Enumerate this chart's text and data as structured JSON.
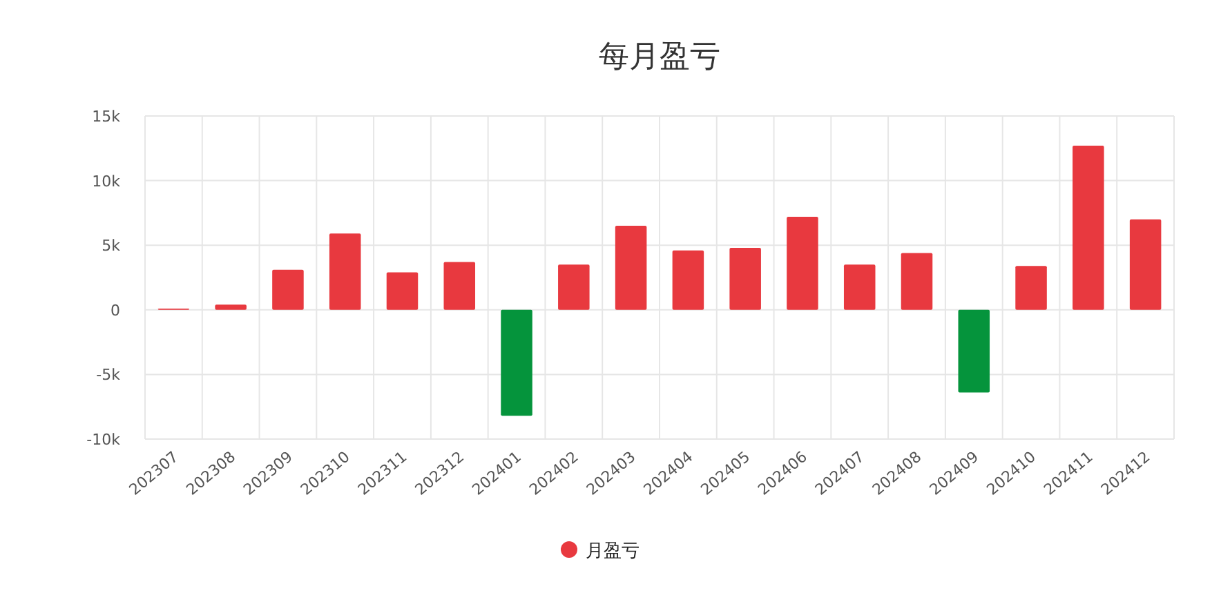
{
  "chart_data": {
    "type": "bar",
    "title": "每月盈亏",
    "categories": [
      "202307",
      "202308",
      "202309",
      "202310",
      "202311",
      "202312",
      "202401",
      "202402",
      "202403",
      "202404",
      "202405",
      "202406",
      "202407",
      "202408",
      "202409",
      "202410",
      "202411",
      "202412"
    ],
    "series": [
      {
        "name": "月盈亏",
        "color": "#e8393f",
        "colors": [
          "#e8393f",
          "#e8393f",
          "#e8393f",
          "#e8393f",
          "#e8393f",
          "#e8393f",
          "#05943c",
          "#e8393f",
          "#e8393f",
          "#e8393f",
          "#e8393f",
          "#e8393f",
          "#e8393f",
          "#e8393f",
          "#05943c",
          "#e8393f",
          "#e8393f",
          "#e8393f"
        ],
        "values": [
          100,
          400,
          3100,
          5900,
          2900,
          3700,
          -8200,
          3500,
          6500,
          4600,
          4800,
          7200,
          3500,
          4400,
          -6400,
          3400,
          12700,
          7000
        ]
      }
    ],
    "ylim": [
      -10000,
      15000
    ],
    "yticks": [
      {
        "value": -10000,
        "label": "-10k"
      },
      {
        "value": -5000,
        "label": "-5k"
      },
      0,
      {
        "value": 5000,
        "label": "5k"
      },
      {
        "value": 10000,
        "label": "10k"
      },
      {
        "value": 15000,
        "label": "15k"
      }
    ],
    "grid": true,
    "legend": "bottom"
  }
}
